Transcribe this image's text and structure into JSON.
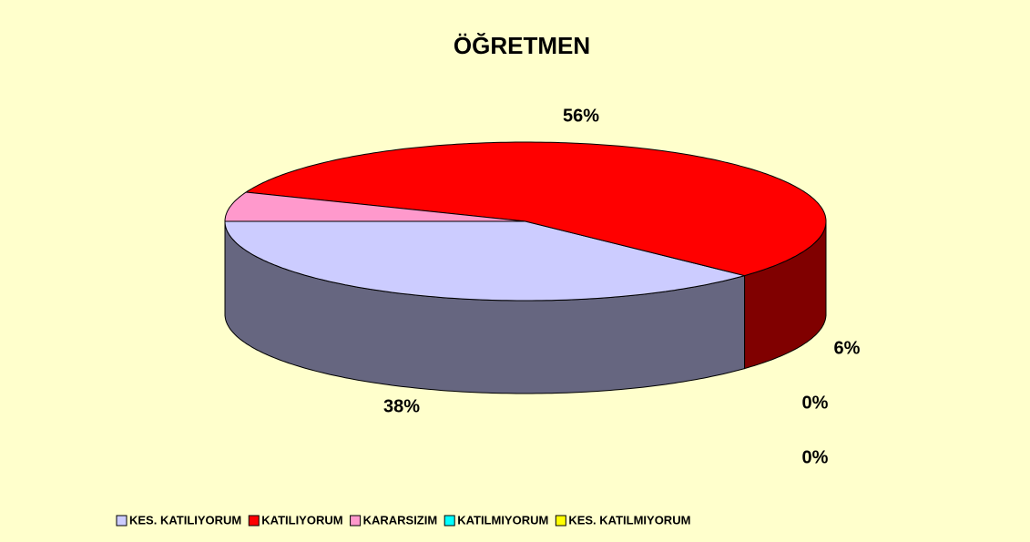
{
  "chart_data": {
    "type": "pie3d",
    "title": "ÖĞRETMEN",
    "categories": [
      "KES. KATILIYORUM",
      "KATILIYORUM",
      "KARARSIZIM",
      "KATILMIYORUM",
      "KES. KATILMIYORUM"
    ],
    "values": [
      38,
      56,
      6,
      0,
      0
    ],
    "value_labels": [
      "38%",
      "56%",
      "6%",
      "0%",
      "0%"
    ],
    "colors": [
      "#ccccff",
      "#ff0000",
      "#ff99cc",
      "#00ffff",
      "#ffff00"
    ],
    "legend": "bottom"
  }
}
